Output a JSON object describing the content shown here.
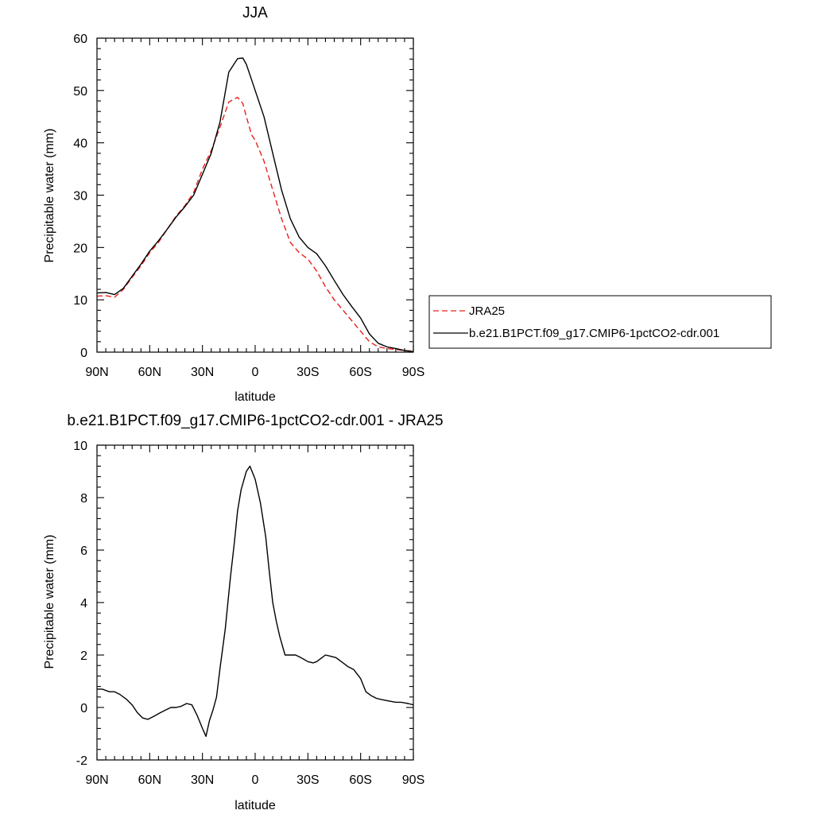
{
  "chart_data": [
    {
      "type": "line",
      "title": "JJA",
      "xlabel": "latitude",
      "ylabel": "Precipitable water (mm)",
      "xlim": [
        90,
        -90
      ],
      "ylim": [
        0,
        60
      ],
      "xticks": [
        90,
        60,
        30,
        0,
        -30,
        -60,
        -90
      ],
      "xtick_labels": [
        "90N",
        "60N",
        "30N",
        "0",
        "30S",
        "60S",
        "90S"
      ],
      "yticks": [
        0,
        10,
        20,
        30,
        40,
        50,
        60
      ],
      "ytick_labels": [
        "0",
        "10",
        "20",
        "30",
        "40",
        "50",
        "60"
      ],
      "legend_position": "right",
      "series": [
        {
          "name": "JRA25",
          "color": "#e8201e",
          "dash": "dashed",
          "x": [
            90,
            85,
            80,
            75,
            70,
            65,
            60,
            55,
            50,
            45,
            40,
            35,
            30,
            25,
            20,
            15,
            10,
            7,
            5,
            2,
            0,
            -5,
            -10,
            -15,
            -20,
            -25,
            -30,
            -35,
            -40,
            -45,
            -50,
            -55,
            -60,
            -65,
            -70,
            -75,
            -80,
            -85,
            -90
          ],
          "y": [
            10.7,
            10.8,
            10.5,
            12.0,
            14.3,
            16.5,
            19.0,
            21.0,
            23.5,
            26.0,
            28.0,
            30.5,
            35.0,
            38.5,
            43.0,
            47.8,
            48.7,
            47.5,
            45.0,
            41.5,
            40.5,
            36.5,
            31.0,
            25.5,
            21.0,
            19.0,
            17.8,
            15.5,
            12.5,
            10.0,
            8.0,
            6.0,
            4.0,
            2.0,
            1.0,
            0.7,
            0.5,
            0.3,
            0.2
          ]
        },
        {
          "name": "b.e21.B1PCT.f09_g17.CMIP6-1pctCO2-cdr.001",
          "color": "#000000",
          "dash": "solid",
          "x": [
            90,
            85,
            80,
            75,
            70,
            65,
            60,
            55,
            50,
            45,
            40,
            35,
            30,
            25,
            20,
            15,
            10,
            7,
            5,
            2,
            0,
            -5,
            -10,
            -15,
            -20,
            -25,
            -30,
            -35,
            -40,
            -45,
            -50,
            -55,
            -60,
            -65,
            -70,
            -75,
            -80,
            -85,
            -90
          ],
          "y": [
            11.3,
            11.4,
            11.0,
            12.2,
            14.5,
            16.8,
            19.3,
            21.3,
            23.5,
            25.8,
            27.8,
            30.0,
            34.0,
            38.0,
            44.0,
            53.5,
            56.1,
            56.2,
            55.0,
            52.0,
            50.0,
            45.0,
            38.0,
            31.0,
            25.5,
            22.0,
            20.0,
            18.8,
            16.5,
            13.7,
            11.0,
            8.7,
            6.5,
            3.5,
            1.7,
            1.0,
            0.7,
            0.3,
            0.1
          ]
        }
      ]
    },
    {
      "type": "line",
      "title": "b.e21.B1PCT.f09_g17.CMIP6-1pctCO2-cdr.001 - JRA25",
      "xlabel": "latitude",
      "ylabel": "Precipitable water (mm)",
      "xlim": [
        90,
        -90
      ],
      "ylim": [
        -2,
        10
      ],
      "xticks": [
        90,
        60,
        30,
        0,
        -30,
        -60,
        -90
      ],
      "xtick_labels": [
        "90N",
        "60N",
        "30N",
        "0",
        "30S",
        "60S",
        "90S"
      ],
      "yticks": [
        -2,
        0,
        2,
        4,
        6,
        8,
        10
      ],
      "ytick_labels": [
        "-2",
        "0",
        "2",
        "4",
        "6",
        "8",
        "10"
      ],
      "series": [
        {
          "color": "#000000",
          "dash": "solid",
          "x": [
            90,
            87,
            83,
            80,
            77,
            73,
            70,
            67,
            64,
            61,
            58,
            54,
            51,
            48,
            45,
            42,
            39,
            36,
            33,
            30,
            28,
            26,
            24,
            22,
            20,
            17,
            14,
            12,
            10,
            8,
            5,
            3,
            0,
            -3,
            -6,
            -8,
            -10,
            -12,
            -14,
            -17,
            -20,
            -23,
            -26,
            -30,
            -33,
            -35,
            -38,
            -40,
            -43,
            -46,
            -50,
            -53,
            -56,
            -60,
            -63,
            -66,
            -69,
            -72,
            -76,
            -80,
            -83,
            -87,
            -90
          ],
          "y": [
            0.7,
            0.7,
            0.6,
            0.6,
            0.5,
            0.3,
            0.1,
            -0.2,
            -0.4,
            -0.45,
            -0.35,
            -0.2,
            -0.1,
            0.0,
            0.0,
            0.05,
            0.15,
            0.1,
            -0.3,
            -0.8,
            -1.1,
            -0.5,
            -0.1,
            0.4,
            1.5,
            3.0,
            5.0,
            6.2,
            7.5,
            8.3,
            9.0,
            9.2,
            8.7,
            7.8,
            6.5,
            5.2,
            4.0,
            3.3,
            2.7,
            2.0,
            2.0,
            2.0,
            1.9,
            1.75,
            1.7,
            1.75,
            1.9,
            2.0,
            1.95,
            1.9,
            1.7,
            1.55,
            1.45,
            1.1,
            0.6,
            0.45,
            0.35,
            0.3,
            0.25,
            0.2,
            0.2,
            0.15,
            0.1
          ]
        }
      ]
    }
  ]
}
